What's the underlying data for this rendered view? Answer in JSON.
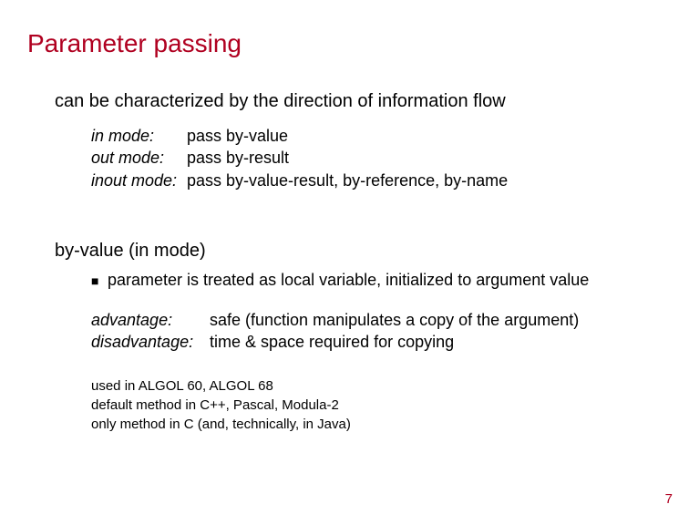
{
  "colors": {
    "title_color": "#b00020",
    "body_color": "#000000",
    "pagenum_color": "#b00020",
    "background": "#ffffff"
  },
  "typography": {
    "title_fontsize": 28,
    "main_fontsize": 20,
    "sub_fontsize": 18,
    "small_fontsize": 15,
    "font_family": "Arial"
  },
  "title": "Parameter passing",
  "intro": "can be characterized by the direction of information flow",
  "modes": [
    {
      "label": "in mode:",
      "value": "pass by-value"
    },
    {
      "label": "out mode:",
      "value": "pass by-result"
    },
    {
      "label": "inout mode:",
      "value": "pass by-value-result, by-reference, by-name"
    }
  ],
  "section_heading": "by-value (in mode)",
  "bullet_mark": "■",
  "bullet_text": "parameter is treated as local variable, initialized to argument value",
  "adv": [
    {
      "label": "advantage:",
      "value": "safe (function manipulates a copy of the argument)"
    },
    {
      "label": "disadvantage:",
      "value": "time & space required for copying"
    }
  ],
  "usage": [
    "used in ALGOL 60, ALGOL 68",
    "default method in C++, Pascal, Modula-2",
    "only method in C (and, technically, in Java)"
  ],
  "page_number": "7"
}
